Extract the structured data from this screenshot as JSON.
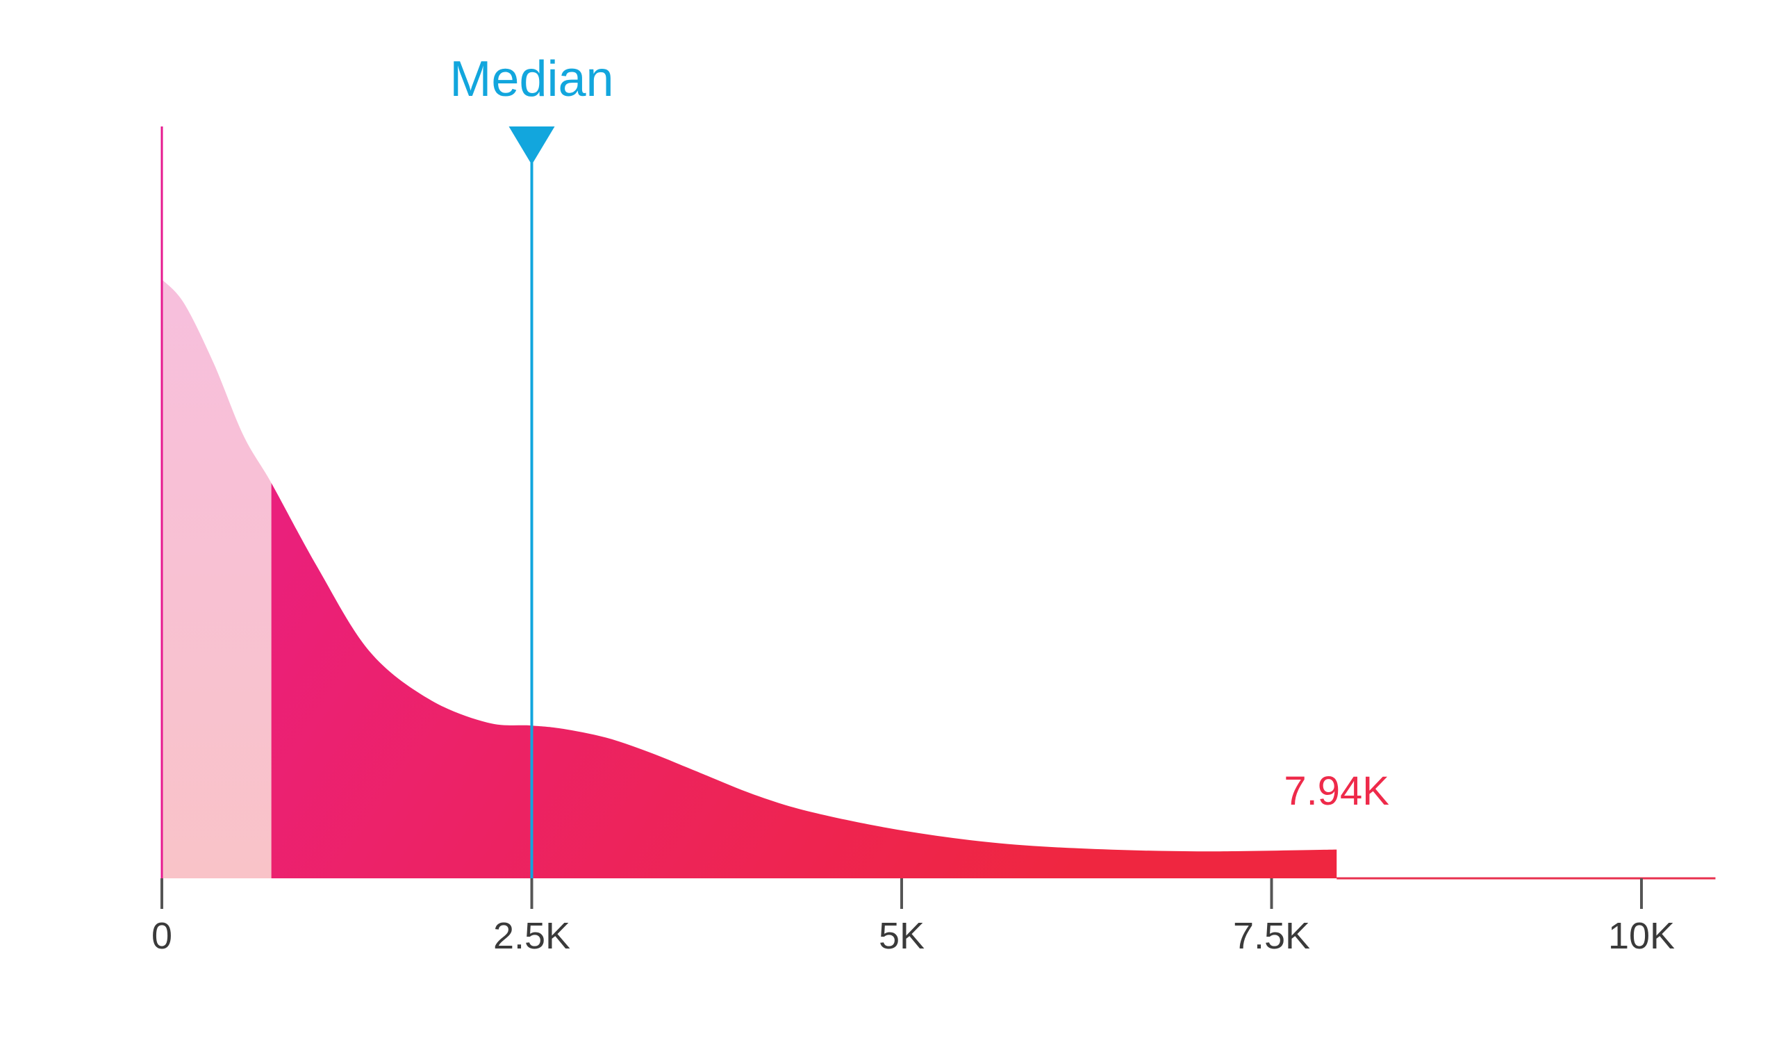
{
  "chart_data": {
    "type": "area",
    "title": "",
    "xlabel": "",
    "ylabel": "",
    "xlim": [
      0,
      10500
    ],
    "ylim": [
      0,
      1
    ],
    "grid": false,
    "x_ticks": [
      {
        "value": 0,
        "label": "0"
      },
      {
        "value": 2500,
        "label": "2.5K"
      },
      {
        "value": 5000,
        "label": "5K"
      },
      {
        "value": 7500,
        "label": "7.5K"
      },
      {
        "value": 10000,
        "label": "10K"
      }
    ],
    "series": [
      {
        "x": [
          0,
          150,
          350,
          550,
          740,
          1050,
          1400,
          1800,
          2200,
          2500,
          2700,
          3000,
          3300,
          3600,
          4000,
          4400,
          5000,
          5600,
          6200,
          7000,
          7940
        ],
        "y": [
          1.0,
          0.96,
          0.86,
          0.74,
          0.66,
          0.52,
          0.38,
          0.3,
          0.26,
          0.255,
          0.25,
          0.235,
          0.21,
          0.18,
          0.14,
          0.11,
          0.08,
          0.06,
          0.05,
          0.045,
          0.048
        ]
      }
    ],
    "shaded_region": {
      "x_start": 0,
      "x_end": 740
    },
    "median": {
      "value": 2500,
      "label": "Median"
    },
    "end_marker": {
      "value": 7940,
      "label": "7.94K"
    },
    "colors": {
      "median": "#12a6dd",
      "end": "#ee2a4a",
      "axis_left": "#e6198f",
      "baseline": "#e8314f",
      "fill_start": "#e91e8c",
      "fill_end": "#ef2640",
      "light_start": "#f7bfdd",
      "light_end": "#f9c3c8",
      "tick": "#555555"
    }
  }
}
